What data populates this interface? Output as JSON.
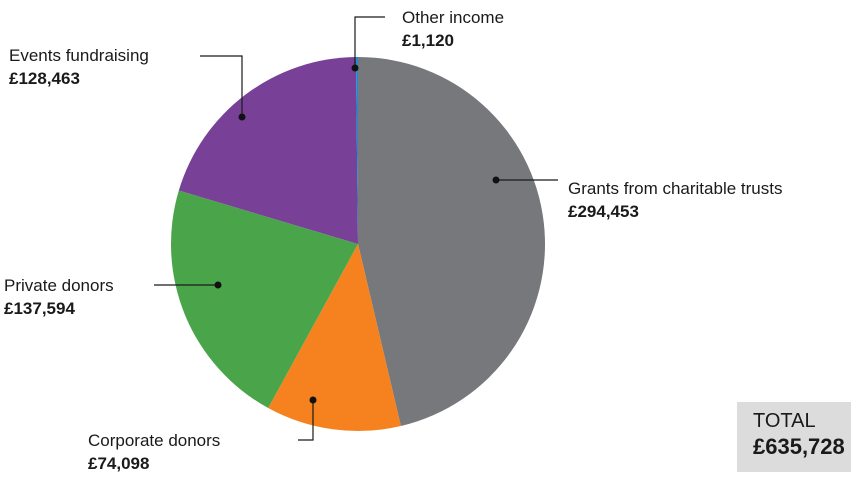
{
  "chart_data": {
    "type": "pie",
    "title": "",
    "slices": [
      {
        "label": "Grants from charitable trusts",
        "value": 294453,
        "display": "£294,453",
        "color": "#77787b"
      },
      {
        "label": "Corporate donors",
        "value": 74098,
        "display": "£74,098",
        "color": "#f5821f"
      },
      {
        "label": "Private donors",
        "value": 137594,
        "display": "£137,594",
        "color": "#4aa54a"
      },
      {
        "label": "Events fundraising",
        "value": 128463,
        "display": "£128,463",
        "color": "#784097"
      },
      {
        "label": "Other income",
        "value": 1120,
        "display": "£1,120",
        "color": "#1f8ccf"
      }
    ],
    "total": {
      "label": "TOTAL",
      "value": "£635,728"
    }
  }
}
